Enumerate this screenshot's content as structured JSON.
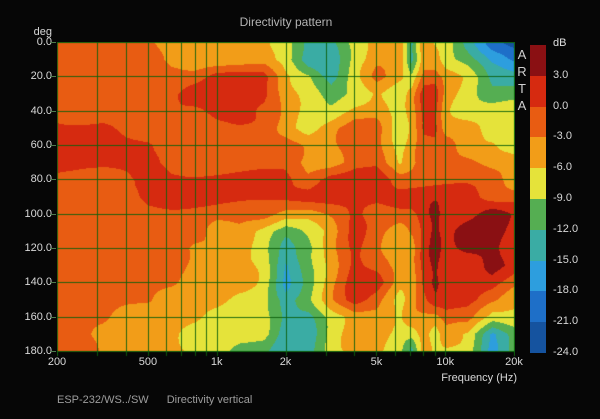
{
  "title": "Directivity pattern",
  "status": {
    "device": "ESP-232/WS../SW",
    "label": "Directivity vertical"
  },
  "watermark": {
    "name": "ARTA",
    "letters": [
      "A",
      "R",
      "T",
      "A"
    ]
  },
  "axes": {
    "y_label": "deg",
    "x_label": "Frequency (Hz)",
    "y_tick_labels": [
      "0.0",
      "20.0",
      "40.0",
      "60.0",
      "80.0",
      "100.0",
      "120.0",
      "140.0",
      "160.0",
      "180.0"
    ],
    "y_tick_values": [
      0,
      20,
      40,
      60,
      80,
      100,
      120,
      140,
      160,
      180
    ],
    "x_tick_labels": [
      "200",
      "500",
      "1k",
      "2k",
      "5k",
      "10k",
      "20k"
    ],
    "x_tick_values": [
      200,
      500,
      1000,
      2000,
      5000,
      10000,
      20000
    ]
  },
  "colorbar": {
    "label": "dB",
    "tick_labels": [
      "3.0",
      "0.0",
      "-3.0",
      "-6.0",
      "-9.0",
      "-12.0",
      "-15.0",
      "-18.0",
      "-21.0",
      "-24.0"
    ],
    "colors": [
      "#8a1013",
      "#d62a10",
      "#e85c12",
      "#f29d18",
      "#e5e33a",
      "#55ae52",
      "#3aaca4",
      "#2d9ede",
      "#1e6fc8",
      "#15539f"
    ]
  },
  "grid_color": "#0c5f0c",
  "chart_data": {
    "type": "heatmap",
    "title": "Directivity pattern",
    "xlabel": "Frequency (Hz)",
    "ylabel": "deg",
    "x_scale": "log",
    "x_range": [
      200,
      20000
    ],
    "y_range": [
      0,
      180
    ],
    "value_unit": "dB",
    "value_range": [
      -24,
      6
    ],
    "contour_step_db": 3,
    "grid_lines_hz": [
      300,
      400,
      500,
      600,
      700,
      800,
      900,
      1000,
      2000,
      3000,
      4000,
      5000,
      6000,
      7000,
      8000,
      9000,
      10000,
      20000
    ],
    "grid_lines_deg": [
      0,
      20,
      40,
      60,
      80,
      100,
      120,
      140,
      160,
      180
    ],
    "frequencies": [
      200,
      250,
      315,
      400,
      500,
      630,
      800,
      1000,
      1250,
      1600,
      2000,
      2500,
      3150,
      4000,
      5000,
      6300,
      7100,
      8000,
      9000,
      10000,
      12500,
      16000,
      20000
    ],
    "angles_deg": [
      0,
      10,
      20,
      30,
      40,
      50,
      60,
      70,
      80,
      90,
      100,
      110,
      120,
      130,
      140,
      150,
      160,
      170,
      180
    ],
    "values_db": [
      [
        -1.5,
        -1.5,
        -1.5,
        -1.5,
        -1.5,
        -4.5,
        -4.5,
        -4.5,
        -4.5,
        -4.5,
        -7.5,
        -13.5,
        -13.5,
        -7.5,
        -4.5,
        -4.5,
        -13.5,
        -4.5,
        -7.5,
        -7.5,
        -13.5,
        -19.5,
        -22.5
      ],
      [
        -1.5,
        -1.5,
        -1.5,
        -1.5,
        -1.5,
        -4.5,
        -4.5,
        -4.5,
        -4.5,
        -4.5,
        -7.5,
        -13.5,
        -13.5,
        -7.5,
        -4.5,
        -4.5,
        -13.5,
        -4.5,
        -4.5,
        -7.5,
        -10.5,
        -16.5,
        -19.5
      ],
      [
        -1.5,
        -1.5,
        -1.5,
        -1.5,
        -1.5,
        -1.5,
        -1.5,
        1.5,
        1.5,
        1.5,
        -4.5,
        -7.5,
        -13.5,
        -7.5,
        -1.5,
        -4.5,
        -7.5,
        -1.5,
        -1.5,
        -4.5,
        -7.5,
        -13.5,
        -13.5
      ],
      [
        -1.5,
        -1.5,
        -1.5,
        -1.5,
        -1.5,
        -1.5,
        1.5,
        1.5,
        1.5,
        1.5,
        -4.5,
        -7.5,
        -10.5,
        -7.5,
        -4.5,
        -7.5,
        -4.5,
        1.5,
        1.5,
        -4.5,
        -7.5,
        -10.5,
        -10.5
      ],
      [
        -1.5,
        -1.5,
        -1.5,
        -1.5,
        -1.5,
        -1.5,
        -1.5,
        1.5,
        1.5,
        -1.5,
        -4.5,
        -7.5,
        -7.5,
        -4.5,
        -4.5,
        -7.5,
        -4.5,
        1.5,
        1.5,
        -4.5,
        -7.5,
        -7.5,
        -7.5
      ],
      [
        1.5,
        1.5,
        1.5,
        -1.5,
        -1.5,
        -1.5,
        -1.5,
        -1.5,
        -1.5,
        -1.5,
        -4.5,
        -7.5,
        -4.5,
        -1.5,
        -1.5,
        -7.5,
        -4.5,
        1.5,
        1.5,
        -4.5,
        -4.5,
        -7.5,
        -7.5
      ],
      [
        1.5,
        1.5,
        1.5,
        1.5,
        1.5,
        -1.5,
        -1.5,
        -1.5,
        -1.5,
        -1.5,
        -1.5,
        -4.5,
        -4.5,
        -1.5,
        -1.5,
        -7.5,
        -4.5,
        -1.5,
        -1.5,
        -1.5,
        -4.5,
        -4.5,
        -7.5
      ],
      [
        1.5,
        1.5,
        1.5,
        1.5,
        1.5,
        -1.5,
        -1.5,
        -1.5,
        -1.5,
        -1.5,
        -1.5,
        -4.5,
        -4.5,
        -1.5,
        -1.5,
        -7.5,
        -4.5,
        -1.5,
        -1.5,
        -1.5,
        -1.5,
        -4.5,
        -4.5
      ],
      [
        -1.5,
        -1.5,
        -1.5,
        -1.5,
        1.5,
        1.5,
        1.5,
        1.5,
        1.5,
        1.5,
        1.5,
        -1.5,
        1.5,
        1.5,
        1.5,
        -1.5,
        -1.5,
        -1.5,
        -1.5,
        -1.5,
        -1.5,
        -1.5,
        -4.5
      ],
      [
        -1.5,
        -1.5,
        -1.5,
        -1.5,
        1.5,
        1.5,
        1.5,
        1.5,
        1.5,
        1.5,
        1.5,
        1.5,
        1.5,
        1.5,
        1.5,
        1.5,
        1.5,
        1.5,
        1.5,
        1.5,
        1.5,
        -1.5,
        -1.5
      ],
      [
        -1.5,
        -1.5,
        -1.5,
        -1.5,
        -1.5,
        -1.5,
        -1.5,
        -1.5,
        -1.5,
        -1.5,
        -4.5,
        -4.5,
        -1.5,
        1.5,
        -1.5,
        -1.5,
        -1.5,
        1.5,
        4.5,
        1.5,
        1.5,
        4.5,
        1.5
      ],
      [
        -1.5,
        -1.5,
        -1.5,
        -1.5,
        -1.5,
        -1.5,
        -1.5,
        -4.5,
        -4.5,
        -7.5,
        -10.5,
        -7.5,
        -4.5,
        1.5,
        -1.5,
        -4.5,
        -1.5,
        1.5,
        4.5,
        1.5,
        4.5,
        4.5,
        1.5
      ],
      [
        -1.5,
        -1.5,
        -1.5,
        -1.5,
        -1.5,
        -1.5,
        -4.5,
        -4.5,
        -4.5,
        -7.5,
        -13.5,
        -10.5,
        -4.5,
        1.5,
        -1.5,
        -4.5,
        -4.5,
        1.5,
        4.5,
        1.5,
        4.5,
        4.5,
        1.5
      ],
      [
        -1.5,
        -1.5,
        -1.5,
        -1.5,
        -1.5,
        -1.5,
        -4.5,
        -4.5,
        -4.5,
        -7.5,
        -16.5,
        -10.5,
        -4.5,
        1.5,
        -1.5,
        -4.5,
        -4.5,
        1.5,
        4.5,
        1.5,
        1.5,
        4.5,
        1.5
      ],
      [
        -1.5,
        -1.5,
        -1.5,
        -1.5,
        -1.5,
        -1.5,
        -4.5,
        -4.5,
        -4.5,
        -7.5,
        -16.5,
        -10.5,
        -4.5,
        1.5,
        1.5,
        -4.5,
        -4.5,
        1.5,
        4.5,
        1.5,
        1.5,
        1.5,
        -1.5
      ],
      [
        -1.5,
        -1.5,
        -1.5,
        -1.5,
        -1.5,
        -4.5,
        -4.5,
        -4.5,
        -7.5,
        -7.5,
        -13.5,
        -10.5,
        -4.5,
        1.5,
        -1.5,
        -7.5,
        -4.5,
        -1.5,
        1.5,
        1.5,
        1.5,
        -1.5,
        -4.5
      ],
      [
        -1.5,
        -1.5,
        -1.5,
        -4.5,
        -4.5,
        -4.5,
        -4.5,
        -7.5,
        -7.5,
        -7.5,
        -13.5,
        -13.5,
        -7.5,
        -4.5,
        -4.5,
        -7.5,
        -4.5,
        -4.5,
        -4.5,
        -1.5,
        -1.5,
        -7.5,
        -7.5
      ],
      [
        -1.5,
        -1.5,
        -4.5,
        -4.5,
        -4.5,
        -4.5,
        -7.5,
        -7.5,
        -7.5,
        -7.5,
        -13.5,
        -13.5,
        -7.5,
        -4.5,
        -4.5,
        -7.5,
        -7.5,
        -4.5,
        -7.5,
        -4.5,
        -7.5,
        -16.5,
        -10.5
      ],
      [
        -1.5,
        -1.5,
        -4.5,
        -4.5,
        -4.5,
        -4.5,
        -7.5,
        -7.5,
        -10.5,
        -10.5,
        -13.5,
        -13.5,
        -7.5,
        -4.5,
        -4.5,
        -7.5,
        -13.5,
        -4.5,
        -7.5,
        -7.5,
        -7.5,
        -16.5,
        -10.5
      ]
    ],
    "legend_position": "right",
    "grid": true
  }
}
